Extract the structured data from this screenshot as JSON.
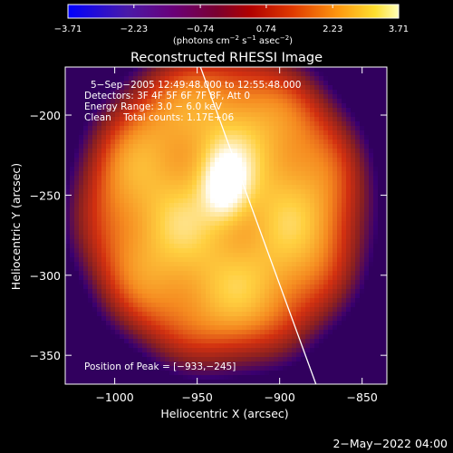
{
  "chart_data": {
    "type": "heatmap",
    "title": "Reconstructed RHESSI Image",
    "xlabel": "Heliocentric X (arcsec)",
    "ylabel": "Heliocentric Y (arcsec)",
    "xlim": [
      -1030,
      -835
    ],
    "ylim": [
      -368,
      -170
    ],
    "xticks": [
      -1000,
      -950,
      -900,
      -850
    ],
    "xtick_labels": [
      "−1000",
      "−950",
      "−900",
      "−850"
    ],
    "yticks": [
      -200,
      -250,
      -300,
      -350
    ],
    "ytick_labels": [
      "−200",
      "−250",
      "−300",
      "−350"
    ],
    "colorbar": {
      "range": [
        -3.71,
        3.71
      ],
      "ticks": [
        -3.71,
        -2.23,
        -0.74,
        0.74,
        2.23,
        3.71
      ],
      "tick_labels": [
        "−3.71",
        "−2.23",
        "−0.74",
        "0.74",
        "2.23",
        "3.71"
      ],
      "units_text": "(photons cm",
      "units_exp1": "−2",
      "units_mid": " s",
      "units_exp2": "−1",
      "units_mid2": " asec",
      "units_exp3": "−2",
      "units_end": ")"
    },
    "annotations": [
      "5−Sep−2005 12:49:48.000 to 12:55:48.000",
      "Detectors: 3F 4F 5F 6F 7F 8F, Att 0",
      "Energy Range: 3.0 − 6.0 keV",
      "Clean    Total counts: 1.17E+06"
    ],
    "peak_label": "Position of Peak = [−933,−245]",
    "peak": [
      -933,
      -245
    ],
    "limb_line": [
      [
        -948,
        -170
      ],
      [
        -878,
        -368
      ]
    ],
    "source": {
      "center": [
        -935,
        -258
      ],
      "radius_x": 78,
      "radius_y": 88
    },
    "colormap": [
      "#000000",
      "#3a0070",
      "#8a2020",
      "#d23010",
      "#f58a20",
      "#ffd040",
      "#ffffff"
    ]
  },
  "footer": {
    "timestamp": "2−May−2022 04:00"
  }
}
